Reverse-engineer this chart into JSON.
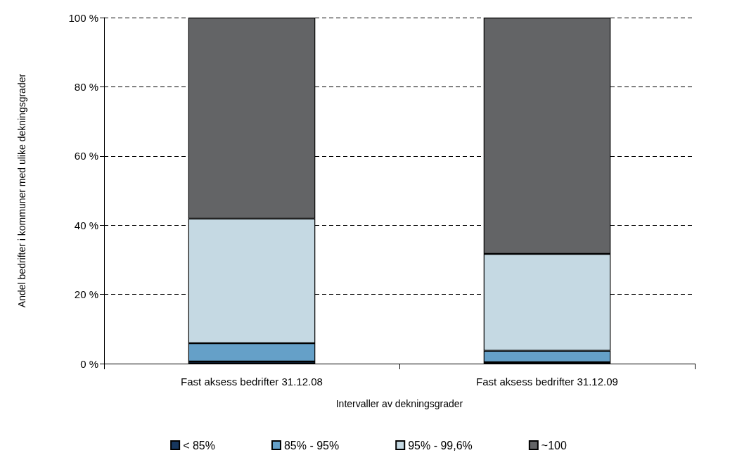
{
  "chart_data": {
    "type": "bar",
    "stacked": true,
    "xlabel": "Intervaller av dekningsgrader",
    "ylabel": "Andel bedrifter i kommuner med ulike dekningsgrader",
    "categories": [
      "Fast aksess bedrifter 31.12.08",
      "Fast aksess bedrifter 31.12.09"
    ],
    "series": [
      {
        "name": "< 85%",
        "color": "#17375e",
        "values": [
          0.6,
          0.4
        ]
      },
      {
        "name": "85% - 95%",
        "color": "#65a0c8",
        "values": [
          5.3,
          3.3
        ]
      },
      {
        "name": "95% - 99,6%",
        "color": "#c5d9e3",
        "values": [
          36,
          28
        ]
      },
      {
        "name": "~100",
        "color": "#636466",
        "values": [
          58.1,
          68.3
        ]
      }
    ],
    "ylim": [
      0,
      100
    ],
    "yticks": [
      {
        "value": 0,
        "label": "0 %"
      },
      {
        "value": 20,
        "label": "20 %"
      },
      {
        "value": 40,
        "label": "40 %"
      },
      {
        "value": 60,
        "label": "60 %"
      },
      {
        "value": 80,
        "label": "80 %"
      },
      {
        "value": 100,
        "label": "100 %"
      }
    ],
    "grid": "y",
    "legend": "bottom"
  }
}
